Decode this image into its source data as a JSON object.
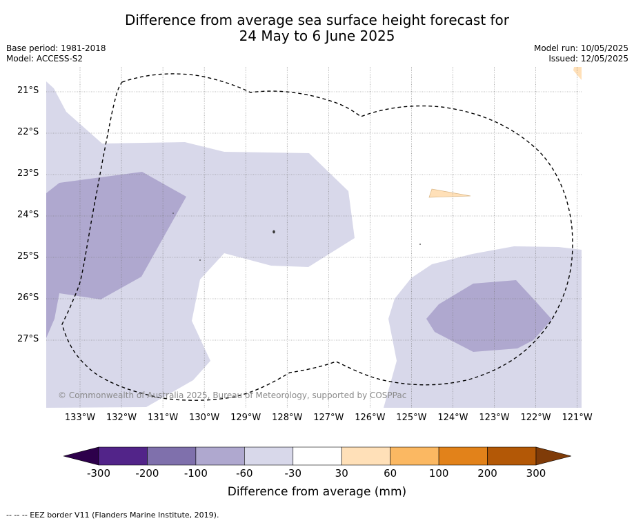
{
  "title_line1": "Difference from average sea surface height forecast for",
  "title_line2": "24 May to 6 June 2025",
  "base_period": "Base period: 1981-2018",
  "model": "Model: ACCESS-S2",
  "model_run": "Model run: 10/05/2025",
  "issued": "Issued: 12/05/2025",
  "copyright": "© Commonwealth of Australia 2025, Bureau of Meteorology, supported by COSPPac",
  "lat_labels": [
    "21°S",
    "22°S",
    "23°S",
    "24°S",
    "25°S",
    "26°S",
    "27°S"
  ],
  "lon_labels": [
    "133°W",
    "132°W",
    "131°W",
    "130°W",
    "129°W",
    "128°W",
    "127°W",
    "126°W",
    "125°W",
    "124°W",
    "123°W",
    "122°W",
    "121°W"
  ],
  "colorbar": {
    "label": "Difference from average (mm)",
    "ticks": [
      "-300",
      "-200",
      "-100",
      "-60",
      "-30",
      "30",
      "60",
      "100",
      "200",
      "300"
    ],
    "colors": [
      "#522489",
      "#7f70ac",
      "#afa8cf",
      "#d8d8ea",
      "#ffffff",
      "#ffe0b8",
      "#fbb862",
      "#e2821a",
      "#b35806"
    ],
    "under_color": "#2d004b",
    "over_color": "#7f3b08"
  },
  "footnote": "--  --  -- EEZ border V11 (Flanders Marine Institute, 2019).",
  "colors": {
    "level_neg60": "#d8d8ea",
    "level_neg100": "#afa8cf",
    "level_pos30": "#ffe0b8"
  }
}
